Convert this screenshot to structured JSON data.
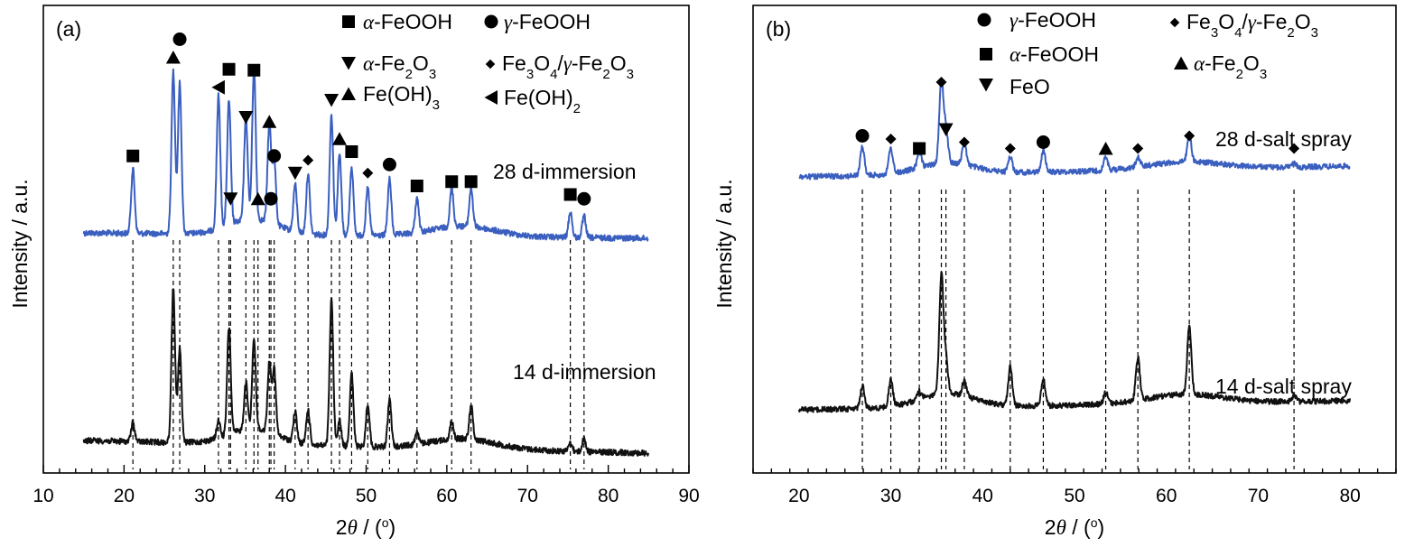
{
  "chart_data": [
    {
      "type": "line",
      "panel": "(a)",
      "xlabel": "2θ / (o)",
      "ylabel": "Intensity / a.u.",
      "xlim": [
        10,
        90
      ],
      "xticks": [
        10,
        20,
        30,
        40,
        50,
        60,
        70,
        80,
        90
      ],
      "legend": [
        {
          "marker": "square",
          "label": "α-FeOOH"
        },
        {
          "marker": "circle",
          "label": "γ-FeOOH"
        },
        {
          "marker": "triangle-down",
          "label": "α-Fe2O3"
        },
        {
          "marker": "diamond",
          "label": "Fe3O4/γ-Fe2O3"
        },
        {
          "marker": "triangle-up",
          "label": "Fe(OH)3"
        },
        {
          "marker": "triangle-left",
          "label": "Fe(OH)2"
        }
      ],
      "series": [
        {
          "name": "28 d-immersion",
          "color": "#3a5fbf",
          "x_range": [
            15,
            85
          ]
        },
        {
          "name": "14 d-immersion",
          "color": "#111111",
          "x_range": [
            15,
            85
          ]
        }
      ],
      "peaks": [
        {
          "x": 21.1,
          "marker": "square",
          "h28": 0.75,
          "h14": 0.22
        },
        {
          "x": 26.1,
          "marker": "triangle-up",
          "h28": 1.9,
          "h14": 1.8
        },
        {
          "x": 26.9,
          "marker": "circle",
          "h28": 1.75,
          "h14": 1.1
        },
        {
          "x": 31.7,
          "marker": "triangle-left",
          "h28": 1.55,
          "h14": 0.2
        },
        {
          "x": 33.0,
          "marker": "square",
          "h28": 1.45,
          "h14": 1.25
        },
        {
          "x": 33.2,
          "marker": "triangle-down",
          "h28": 0.0,
          "h14": 0.0
        },
        {
          "x": 35.1,
          "marker": "triangle-down",
          "h28": 1.2,
          "h14": 0.55
        },
        {
          "x": 36.1,
          "marker": "square",
          "h28": 1.75,
          "h14": 1.05
        },
        {
          "x": 36.6,
          "marker": "triangle-up",
          "h28": 0.0,
          "h14": 0.0
        },
        {
          "x": 38.0,
          "marker": "triangle-up",
          "h28": 1.15,
          "h14": 0.8
        },
        {
          "x": 38.2,
          "marker": "circle",
          "h28": 0.0,
          "h14": 0.0
        },
        {
          "x": 38.6,
          "marker": "circle",
          "h28": 0.75,
          "h14": 0.75
        },
        {
          "x": 41.2,
          "marker": "triangle-down",
          "h28": 0.55,
          "h14": 0.35
        },
        {
          "x": 42.8,
          "marker": "diamond",
          "h28": 0.7,
          "h14": 0.4
        },
        {
          "x": 45.7,
          "marker": "triangle-down",
          "h28": 1.4,
          "h14": 1.7
        },
        {
          "x": 46.7,
          "marker": "triangle-up",
          "h28": 0.95,
          "h14": 0.3
        },
        {
          "x": 48.2,
          "marker": "square",
          "h28": 0.8,
          "h14": 0.85
        },
        {
          "x": 50.2,
          "marker": "diamond",
          "h28": 0.55,
          "h14": 0.5
        },
        {
          "x": 52.9,
          "marker": "circle",
          "h28": 0.65,
          "h14": 0.55
        },
        {
          "x": 56.3,
          "marker": "square",
          "h28": 0.4,
          "h14": 0.15
        },
        {
          "x": 60.6,
          "marker": "square",
          "h28": 0.45,
          "h14": 0.2
        },
        {
          "x": 63.0,
          "marker": "square",
          "h28": 0.45,
          "h14": 0.4
        },
        {
          "x": 75.3,
          "marker": "square",
          "h28": 0.3,
          "h14": 0.1
        },
        {
          "x": 77.0,
          "marker": "circle",
          "h28": 0.25,
          "h14": 0.15
        }
      ]
    },
    {
      "type": "line",
      "panel": "(b)",
      "xlabel": "2θ / (o)",
      "ylabel": "Intensity / a.u.",
      "xlim": [
        15,
        85
      ],
      "xticks": [
        20,
        30,
        40,
        50,
        60,
        70,
        80
      ],
      "legend": [
        {
          "marker": "circle",
          "label": "γ-FeOOH"
        },
        {
          "marker": "square",
          "label": "α-FeOOH"
        },
        {
          "marker": "triangle-down",
          "label": "FeO"
        },
        {
          "marker": "diamond",
          "label": "Fe3O4/γ-Fe2O3"
        },
        {
          "marker": "triangle-up",
          "label": "α-Fe2O3"
        }
      ],
      "series": [
        {
          "name": "28 d-salt spray",
          "color": "#3a5fbf",
          "x_range": [
            20,
            80
          ]
        },
        {
          "name": "14 d-salt spray",
          "color": "#111111",
          "x_range": [
            20,
            80
          ]
        }
      ],
      "peaks": [
        {
          "x": 26.9,
          "marker": "circle",
          "h28": 0.45,
          "h14": 0.3
        },
        {
          "x": 30.0,
          "marker": "diamond",
          "h28": 0.4,
          "h14": 0.35
        },
        {
          "x": 33.1,
          "marker": "square",
          "h28": 0.25,
          "h14": 0.1
        },
        {
          "x": 35.5,
          "marker": "diamond",
          "h28": 1.3,
          "h14": 1.55
        },
        {
          "x": 36.0,
          "marker": "triangle-down",
          "h28": 0.55,
          "h14": 0.45
        },
        {
          "x": 38.0,
          "marker": "diamond",
          "h28": 0.35,
          "h14": 0.2
        },
        {
          "x": 43.0,
          "marker": "diamond",
          "h28": 0.25,
          "h14": 0.5
        },
        {
          "x": 46.6,
          "marker": "circle",
          "h28": 0.35,
          "h14": 0.35
        },
        {
          "x": 53.4,
          "marker": "triangle-up",
          "h28": 0.2,
          "h14": 0.15
        },
        {
          "x": 56.9,
          "marker": "diamond",
          "h28": 0.15,
          "h14": 0.55
        },
        {
          "x": 62.5,
          "marker": "diamond",
          "h28": 0.45,
          "h14": 0.9
        },
        {
          "x": 73.9,
          "marker": "diamond",
          "h28": 0.05,
          "h14": 0.08
        }
      ]
    }
  ]
}
